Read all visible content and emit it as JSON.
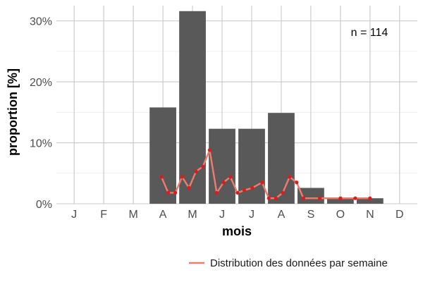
{
  "chart_data": {
    "type": "bar",
    "xlabel": "mois",
    "ylabel": "proportion [%]",
    "categories": [
      "J",
      "F",
      "M",
      "A",
      "M",
      "J",
      "J",
      "A",
      "S",
      "O",
      "N",
      "D"
    ],
    "yticks": [
      "0%",
      "10%",
      "20%",
      "30%"
    ],
    "ylim": [
      0,
      32.5
    ],
    "grid": true,
    "bars": {
      "color": "#595959",
      "values": [
        0,
        0,
        0,
        15.8,
        31.6,
        12.3,
        12.3,
        14.9,
        2.6,
        0.9,
        0.9,
        0
      ]
    },
    "weekly_line": {
      "name": "Distribution des données par semaine",
      "color": "#f07a6e",
      "point_color": "#e0191b",
      "x": [
        3.95,
        4.18,
        4.42,
        4.65,
        4.88,
        5.12,
        5.35,
        5.58,
        5.82,
        6.05,
        6.28,
        6.52,
        6.75,
        7.02,
        7.35,
        7.58,
        7.82,
        8.05,
        8.28,
        8.52,
        8.75,
        9.3,
        10.0,
        10.5,
        11.0
      ],
      "y": [
        4.4,
        1.8,
        1.8,
        4.4,
        2.6,
        5.3,
        6.1,
        8.8,
        1.8,
        3.5,
        4.4,
        1.8,
        2.2,
        2.6,
        3.5,
        0.9,
        0.9,
        1.8,
        4.4,
        3.5,
        0.9,
        0.9,
        0.9,
        0.9,
        0.9
      ]
    },
    "annotation": "n = 114",
    "legend": {
      "position": "bottom-right",
      "entries": [
        "Distribution des données par semaine"
      ]
    }
  }
}
